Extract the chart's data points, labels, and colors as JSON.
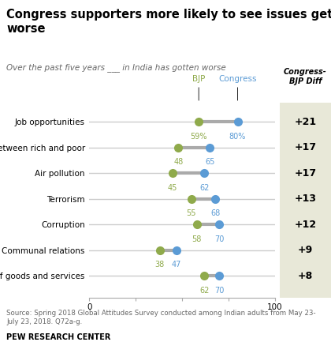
{
  "title": "Congress supporters more likely to see issues getting\nworse",
  "subtitle": "Over the past five years ___ in India has gotten worse",
  "categories": [
    "Job opportunities",
    "Gap between rich and poor",
    "Air pollution",
    "Terrorism",
    "Corruption",
    "Communal relations",
    "Prices of goods and services"
  ],
  "bjp_values": [
    59,
    48,
    45,
    55,
    58,
    38,
    62
  ],
  "congress_values": [
    80,
    65,
    62,
    68,
    70,
    47,
    70
  ],
  "diffs": [
    "+21",
    "+17",
    "+17",
    "+13",
    "+12",
    "+9",
    "+8"
  ],
  "bjp_color": "#8faa4b",
  "congress_color": "#5b9bd5",
  "connector_color": "#aaaaaa",
  "track_color": "#cccccc",
  "diff_bg": "#e8e8d8",
  "source": "Source: Spring 2018 Global Attitudes Survey conducted among Indian adults from May 23-\nJuly 23, 2018. Q72a-g.",
  "footer": "PEW RESEARCH CENTER",
  "xlim": [
    0,
    100
  ],
  "show_pct_row": 0
}
